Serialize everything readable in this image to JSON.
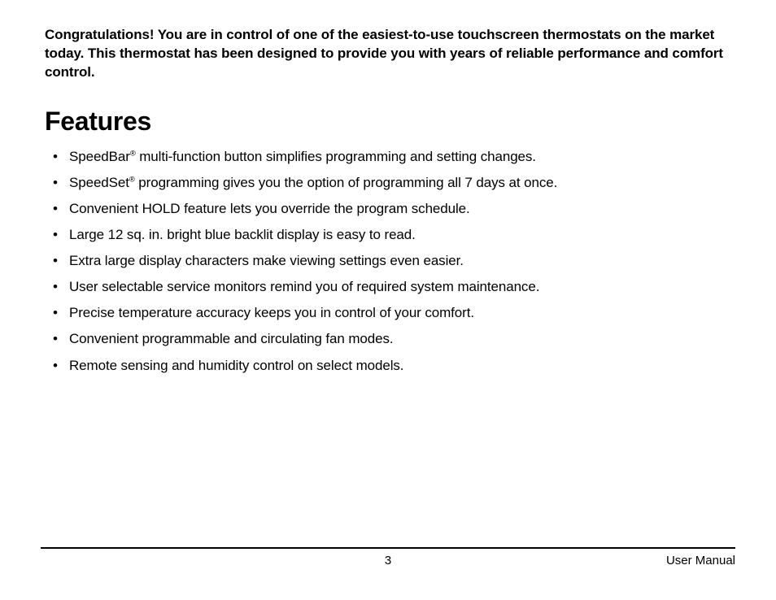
{
  "intro": "Congratulations! You are in control of one of the easiest-to-use touchscreen thermostats on the market today. This thermostat has been designed to provide you with years of reliable performance and comfort control.",
  "section_heading": "Features",
  "features": [
    {
      "prefix": "SpeedBar",
      "reg": "®",
      "suffix": " multi-function button simplifies programming and setting changes."
    },
    {
      "prefix": "SpeedSet",
      "reg": "®",
      "suffix": " programming gives you the option of programming all 7 days at once."
    },
    {
      "prefix": "Convenient HOLD feature lets you override the program schedule.",
      "reg": "",
      "suffix": ""
    },
    {
      "prefix": "Large 12 sq. in. bright blue backlit display is easy to read.",
      "reg": "",
      "suffix": ""
    },
    {
      "prefix": "Extra large display characters make viewing settings even easier.",
      "reg": "",
      "suffix": ""
    },
    {
      "prefix": "User selectable service monitors remind you of required system maintenance.",
      "reg": "",
      "suffix": ""
    },
    {
      "prefix": "Precise temperature accuracy keeps you in control of your comfort.",
      "reg": "",
      "suffix": ""
    },
    {
      "prefix": "Convenient programmable and circulating fan modes.",
      "reg": "",
      "suffix": ""
    },
    {
      "prefix": "Remote sensing and humidity control on select models.",
      "reg": "",
      "suffix": ""
    }
  ],
  "footer": {
    "page_number": "3",
    "doc_title": "User Manual"
  },
  "colors": {
    "text": "#000000",
    "background": "#ffffff",
    "rule": "#000000"
  },
  "typography": {
    "body_fontsize_pt": 13,
    "heading_fontsize_pt": 24,
    "font_family": "Helvetica Condensed / Arial Narrow"
  }
}
